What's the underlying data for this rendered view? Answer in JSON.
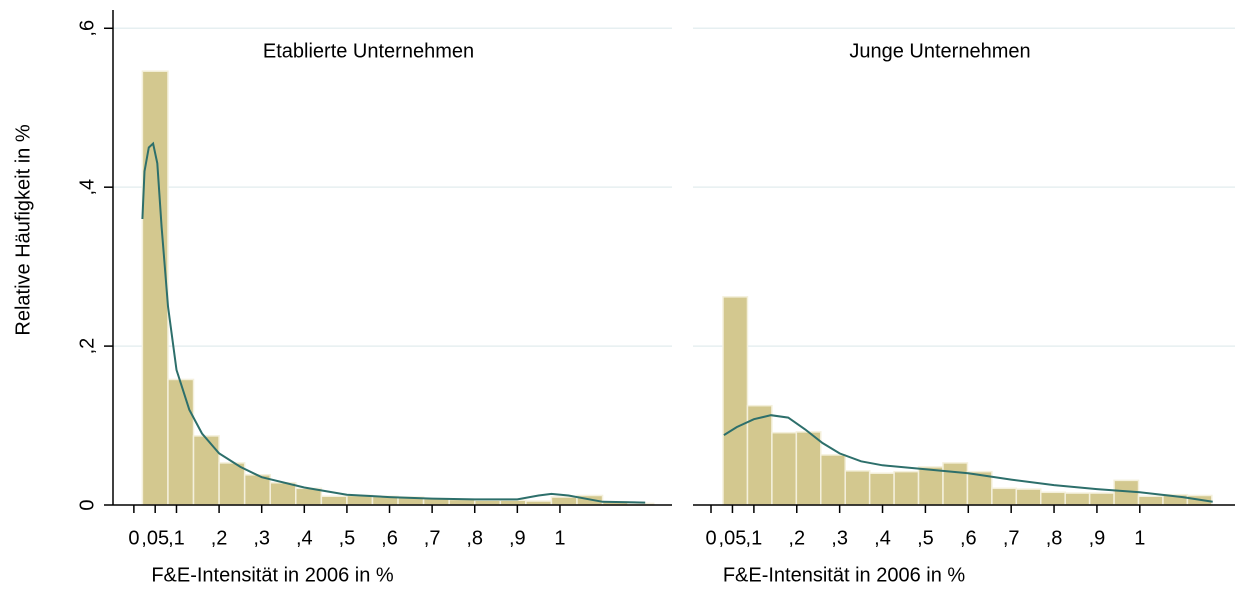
{
  "chart_data": {
    "type": "histogram",
    "ylabel": "Relative Häufigkeit in %",
    "ylim": [
      0,
      0.623
    ],
    "yticks": [
      0,
      {
        "value": 0.2,
        "label": ",2"
      },
      {
        "value": 0.4,
        "label": ",4"
      },
      {
        "value": 0.6,
        "label": ",6"
      }
    ],
    "xticks": [
      0,
      {
        "value": 0.05,
        "label": ",05"
      },
      {
        "value": 0.1,
        "label": ",1"
      },
      {
        "value": 0.2,
        "label": ",2"
      },
      {
        "value": 0.3,
        "label": ",3"
      },
      {
        "value": 0.4,
        "label": ",4"
      },
      {
        "value": 0.5,
        "label": ",5"
      },
      {
        "value": 0.6,
        "label": ",6"
      },
      {
        "value": 0.7,
        "label": ",7"
      },
      {
        "value": 0.8,
        "label": ",8"
      },
      {
        "value": 0.9,
        "label": ",9"
      },
      1
    ],
    "bar_color": "#d3c88f",
    "line_color": "#2d6f6b",
    "grid": true,
    "panels": [
      {
        "title": "Etablierte Unternehmen",
        "xlabel": "F&E-Intensität in 2006 in %",
        "xlim": [
          -0.049,
          1.263
        ],
        "bins": [
          0.02,
          0.08,
          0.14,
          0.2,
          0.26,
          0.32,
          0.38,
          0.44,
          0.5,
          0.56,
          0.62,
          0.68,
          0.74,
          0.8,
          0.86,
          0.92,
          0.98,
          1.04,
          1.1,
          1.16,
          1.22
        ],
        "values": [
          0.546,
          0.158,
          0.087,
          0.053,
          0.038,
          0.028,
          0.021,
          0.011,
          0.012,
          0.011,
          0.01,
          0.008,
          0.007,
          0.006,
          0.006,
          0.005,
          0.01,
          0.012,
          0.004,
          0.002
        ],
        "density": {
          "x": [
            0.02,
            0.025,
            0.035,
            0.045,
            0.055,
            0.065,
            0.08,
            0.1,
            0.13,
            0.16,
            0.2,
            0.25,
            0.3,
            0.4,
            0.5,
            0.6,
            0.7,
            0.8,
            0.9,
            0.95,
            0.98,
            1.02,
            1.1,
            1.2
          ],
          "y": [
            0.36,
            0.42,
            0.45,
            0.455,
            0.43,
            0.35,
            0.25,
            0.17,
            0.12,
            0.09,
            0.065,
            0.048,
            0.035,
            0.022,
            0.013,
            0.01,
            0.008,
            0.007,
            0.007,
            0.012,
            0.014,
            0.012,
            0.004,
            0.003
          ]
        }
      },
      {
        "title": "Junge Unternehmen",
        "xlabel": "F&E-Intensität in 2006 in %",
        "xlim": [
          -0.042,
          1.222
        ],
        "bins": [
          0.028,
          0.085,
          0.142,
          0.199,
          0.256,
          0.313,
          0.37,
          0.427,
          0.484,
          0.541,
          0.598,
          0.655,
          0.712,
          0.769,
          0.826,
          0.883,
          0.94,
          0.997,
          1.054,
          1.111,
          1.168
        ],
        "values": [
          0.262,
          0.125,
          0.091,
          0.092,
          0.063,
          0.043,
          0.04,
          0.042,
          0.048,
          0.053,
          0.042,
          0.021,
          0.02,
          0.016,
          0.015,
          0.015,
          0.031,
          0.011,
          0.013,
          0.012
        ],
        "density": {
          "x": [
            0.03,
            0.06,
            0.1,
            0.14,
            0.18,
            0.22,
            0.26,
            0.3,
            0.35,
            0.4,
            0.5,
            0.6,
            0.7,
            0.8,
            0.9,
            1.0,
            1.1,
            1.17
          ],
          "y": [
            0.088,
            0.098,
            0.108,
            0.113,
            0.11,
            0.095,
            0.078,
            0.065,
            0.055,
            0.05,
            0.045,
            0.04,
            0.032,
            0.025,
            0.02,
            0.016,
            0.01,
            0.004
          ]
        }
      }
    ]
  }
}
